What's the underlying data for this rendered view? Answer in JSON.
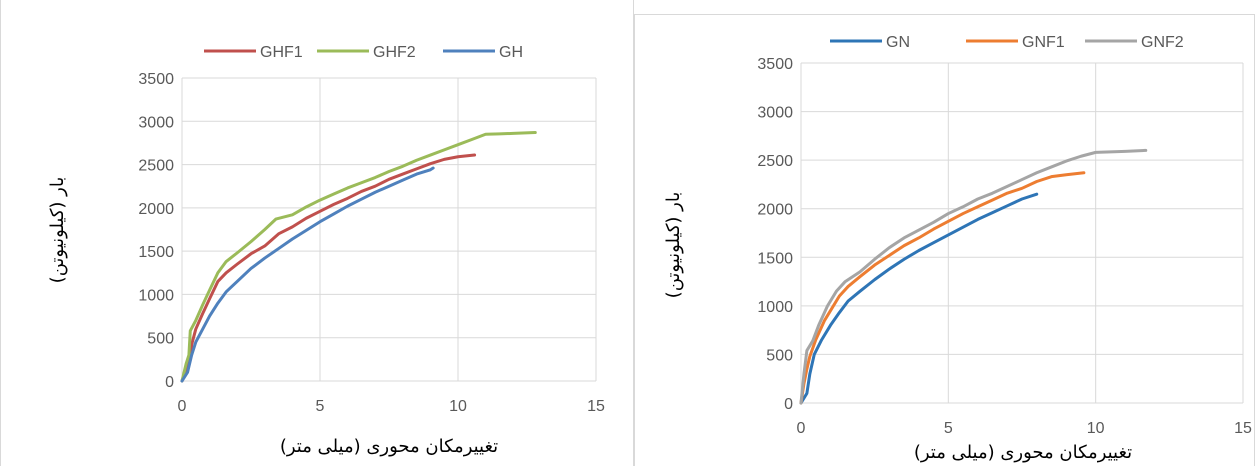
{
  "chart_data": [
    {
      "type": "line",
      "title": "",
      "xlabel": "تغییرمکان محوری (میلی متر)",
      "ylabel": "بار (کیلونیوتن)",
      "xlim": [
        0,
        15
      ],
      "ylim": [
        0,
        3500
      ],
      "x_ticks": [
        "0",
        "5",
        "10",
        "15"
      ],
      "y_ticks": [
        "0",
        "500",
        "1000",
        "1500",
        "2000",
        "2500",
        "3000",
        "3500"
      ],
      "grid": true,
      "legend_position": "top",
      "series": [
        {
          "name": "GHF1",
          "color": "#c0504d",
          "points": [
            [
              0,
              0
            ],
            [
              0.15,
              150
            ],
            [
              0.3,
              250
            ],
            [
              0.35,
              420
            ],
            [
              0.5,
              600
            ],
            [
              0.75,
              780
            ],
            [
              1,
              950
            ],
            [
              1.3,
              1150
            ],
            [
              1.6,
              1250
            ],
            [
              2,
              1350
            ],
            [
              2.5,
              1470
            ],
            [
              3,
              1560
            ],
            [
              3.5,
              1700
            ],
            [
              4,
              1780
            ],
            [
              4.5,
              1880
            ],
            [
              5,
              1960
            ],
            [
              5.5,
              2040
            ],
            [
              6,
              2110
            ],
            [
              6.5,
              2190
            ],
            [
              7,
              2250
            ],
            [
              7.5,
              2330
            ],
            [
              8,
              2390
            ],
            [
              8.5,
              2450
            ],
            [
              9,
              2510
            ],
            [
              9.5,
              2560
            ],
            [
              10,
              2590
            ],
            [
              10.6,
              2610
            ]
          ]
        },
        {
          "name": "GHF2",
          "color": "#9bbb59",
          "points": [
            [
              0,
              0
            ],
            [
              0.15,
              200
            ],
            [
              0.25,
              300
            ],
            [
              0.3,
              580
            ],
            [
              0.5,
              700
            ],
            [
              0.75,
              880
            ],
            [
              1,
              1050
            ],
            [
              1.3,
              1250
            ],
            [
              1.6,
              1380
            ],
            [
              2,
              1480
            ],
            [
              2.5,
              1610
            ],
            [
              3,
              1750
            ],
            [
              3.4,
              1870
            ],
            [
              4,
              1920
            ],
            [
              4.5,
              2010
            ],
            [
              5,
              2090
            ],
            [
              5.5,
              2160
            ],
            [
              6,
              2230
            ],
            [
              6.5,
              2290
            ],
            [
              7,
              2350
            ],
            [
              7.5,
              2420
            ],
            [
              8,
              2480
            ],
            [
              8.5,
              2550
            ],
            [
              9,
              2610
            ],
            [
              9.5,
              2670
            ],
            [
              10,
              2730
            ],
            [
              10.5,
              2790
            ],
            [
              11,
              2850
            ],
            [
              11.5,
              2855
            ],
            [
              12,
              2860
            ],
            [
              12.8,
              2870
            ]
          ]
        },
        {
          "name": "GH",
          "color": "#4f81bd",
          "points": [
            [
              0,
              0
            ],
            [
              0.2,
              100
            ],
            [
              0.35,
              300
            ],
            [
              0.5,
              450
            ],
            [
              0.75,
              600
            ],
            [
              1,
              750
            ],
            [
              1.3,
              900
            ],
            [
              1.6,
              1030
            ],
            [
              2,
              1150
            ],
            [
              2.5,
              1300
            ],
            [
              3,
              1420
            ],
            [
              3.5,
              1530
            ],
            [
              4,
              1640
            ],
            [
              4.5,
              1740
            ],
            [
              5,
              1840
            ],
            [
              5.5,
              1930
            ],
            [
              6,
              2020
            ],
            [
              6.5,
              2100
            ],
            [
              7,
              2180
            ],
            [
              7.5,
              2250
            ],
            [
              8,
              2320
            ],
            [
              8.5,
              2390
            ],
            [
              9,
              2440
            ],
            [
              9.1,
              2460
            ]
          ]
        }
      ]
    },
    {
      "type": "line",
      "title": "",
      "xlabel": "تغییرمکان محوری (میلی متر)",
      "ylabel": "بار (کیلونیوتن)",
      "xlim": [
        0,
        15
      ],
      "ylim": [
        0,
        3500
      ],
      "x_ticks": [
        "0",
        "5",
        "10",
        "15"
      ],
      "y_ticks": [
        "0",
        "500",
        "1000",
        "1500",
        "2000",
        "2500",
        "3000",
        "3500"
      ],
      "grid": true,
      "legend_position": "top",
      "series": [
        {
          "name": "GN",
          "color": "#2e75b6",
          "points": [
            [
              0,
              0
            ],
            [
              0.2,
              100
            ],
            [
              0.3,
              300
            ],
            [
              0.45,
              500
            ],
            [
              0.7,
              650
            ],
            [
              1,
              800
            ],
            [
              1.3,
              930
            ],
            [
              1.6,
              1050
            ],
            [
              2,
              1150
            ],
            [
              2.5,
              1270
            ],
            [
              3,
              1380
            ],
            [
              3.5,
              1480
            ],
            [
              4,
              1570
            ],
            [
              4.5,
              1650
            ],
            [
              5,
              1730
            ],
            [
              5.5,
              1810
            ],
            [
              6,
              1890
            ],
            [
              6.5,
              1960
            ],
            [
              7,
              2030
            ],
            [
              7.5,
              2100
            ],
            [
              8,
              2150
            ]
          ]
        },
        {
          "name": "GNF1",
          "color": "#ed7d31",
          "points": [
            [
              0,
              0
            ],
            [
              0.1,
              200
            ],
            [
              0.2,
              350
            ],
            [
              0.3,
              480
            ],
            [
              0.5,
              650
            ],
            [
              0.8,
              850
            ],
            [
              1,
              950
            ],
            [
              1.3,
              1100
            ],
            [
              1.6,
              1200
            ],
            [
              2,
              1300
            ],
            [
              2.5,
              1420
            ],
            [
              3,
              1520
            ],
            [
              3.5,
              1620
            ],
            [
              4,
              1700
            ],
            [
              4.5,
              1790
            ],
            [
              5,
              1870
            ],
            [
              5.5,
              1950
            ],
            [
              6,
              2020
            ],
            [
              6.5,
              2090
            ],
            [
              7,
              2160
            ],
            [
              7.5,
              2210
            ],
            [
              8,
              2280
            ],
            [
              8.5,
              2330
            ],
            [
              9,
              2350
            ],
            [
              9.6,
              2370
            ]
          ]
        },
        {
          "name": "GNF2",
          "color": "#a5a5a5",
          "points": [
            [
              0,
              0
            ],
            [
              0.1,
              300
            ],
            [
              0.2,
              540
            ],
            [
              0.4,
              640
            ],
            [
              0.6,
              800
            ],
            [
              0.9,
              1000
            ],
            [
              1.2,
              1150
            ],
            [
              1.5,
              1250
            ],
            [
              2,
              1350
            ],
            [
              2.5,
              1480
            ],
            [
              3,
              1600
            ],
            [
              3.5,
              1700
            ],
            [
              4,
              1780
            ],
            [
              4.5,
              1860
            ],
            [
              5,
              1950
            ],
            [
              5.5,
              2020
            ],
            [
              6,
              2100
            ],
            [
              6.5,
              2160
            ],
            [
              7,
              2230
            ],
            [
              7.5,
              2300
            ],
            [
              8,
              2370
            ],
            [
              8.5,
              2430
            ],
            [
              9,
              2490
            ],
            [
              9.5,
              2540
            ],
            [
              10,
              2580
            ],
            [
              10.5,
              2585
            ],
            [
              11,
              2590
            ],
            [
              11.7,
              2600
            ]
          ]
        }
      ]
    }
  ]
}
